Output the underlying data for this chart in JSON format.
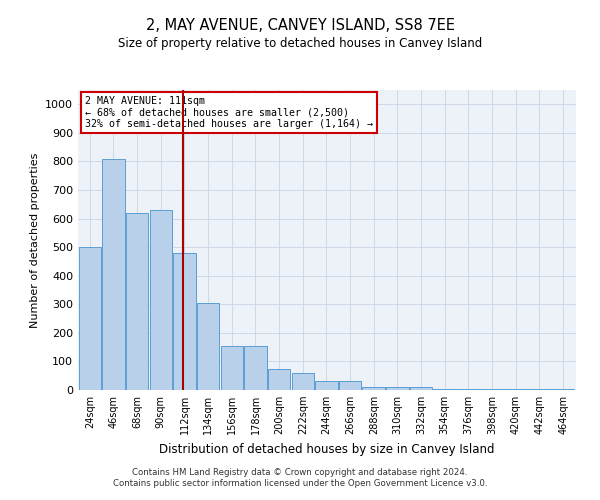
{
  "title": "2, MAY AVENUE, CANVEY ISLAND, SS8 7EE",
  "subtitle": "Size of property relative to detached houses in Canvey Island",
  "xlabel": "Distribution of detached houses by size in Canvey Island",
  "ylabel": "Number of detached properties",
  "footer_line1": "Contains HM Land Registry data © Crown copyright and database right 2024.",
  "footer_line2": "Contains public sector information licensed under the Open Government Licence v3.0.",
  "annotation_line1": "2 MAY AVENUE: 111sqm",
  "annotation_line2": "← 68% of detached houses are smaller (2,500)",
  "annotation_line3": "32% of semi-detached houses are larger (1,164) →",
  "bar_color": "#b8d0ea",
  "bar_edge_color": "#5a9fd4",
  "redline_x": 111,
  "categories": [
    24,
    46,
    68,
    90,
    112,
    134,
    156,
    178,
    200,
    222,
    244,
    266,
    288,
    310,
    332,
    354,
    376,
    398,
    420,
    442,
    464
  ],
  "values": [
    500,
    810,
    620,
    630,
    480,
    305,
    155,
    155,
    75,
    60,
    30,
    30,
    10,
    10,
    10,
    5,
    5,
    5,
    5,
    5,
    5
  ],
  "ylim": [
    0,
    1050
  ],
  "yticks": [
    0,
    100,
    200,
    300,
    400,
    500,
    600,
    700,
    800,
    900,
    1000
  ],
  "bin_width": 22,
  "grid_color": "#c8d4e4",
  "bg_color": "#edf1f8",
  "annotation_box_color": "#ffffff",
  "annotation_box_edge": "#cc0000",
  "redline_color": "#aa0000"
}
